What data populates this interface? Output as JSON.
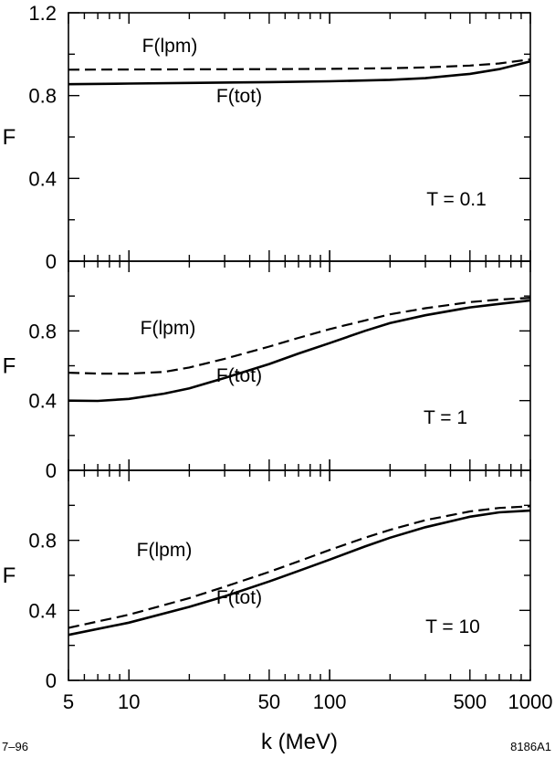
{
  "chart_data": [
    {
      "type": "line",
      "panel_label": "T = 0.1",
      "ylabel": "F",
      "ylim": [
        0,
        1.2
      ],
      "yticks": [
        0,
        0.4,
        0.8,
        1.2
      ],
      "xscale": "log",
      "xlim": [
        5,
        1000
      ],
      "series": [
        {
          "name": "F(lpm)",
          "style": "dashed",
          "x": [
            5,
            10,
            20,
            50,
            100,
            200,
            300,
            500,
            700,
            1000
          ],
          "y": [
            0.925,
            0.926,
            0.927,
            0.928,
            0.929,
            0.932,
            0.936,
            0.945,
            0.955,
            0.975
          ]
        },
        {
          "name": "F(tot)",
          "style": "solid",
          "x": [
            5,
            10,
            20,
            50,
            100,
            200,
            300,
            500,
            700,
            1000
          ],
          "y": [
            0.855,
            0.858,
            0.861,
            0.865,
            0.869,
            0.876,
            0.884,
            0.905,
            0.928,
            0.965
          ]
        }
      ]
    },
    {
      "type": "line",
      "panel_label": "T = 1",
      "ylabel": "F",
      "ylim": [
        0,
        1.2
      ],
      "yticks": [
        0,
        0.4,
        0.8
      ],
      "xscale": "log",
      "xlim": [
        5,
        1000
      ],
      "series": [
        {
          "name": "F(lpm)",
          "style": "dashed",
          "x": [
            5,
            7,
            10,
            15,
            20,
            30,
            50,
            70,
            100,
            150,
            200,
            300,
            500,
            700,
            1000
          ],
          "y": [
            0.56,
            0.555,
            0.555,
            0.565,
            0.59,
            0.64,
            0.71,
            0.76,
            0.81,
            0.86,
            0.895,
            0.93,
            0.965,
            0.98,
            0.99
          ]
        },
        {
          "name": "F(tot)",
          "style": "solid",
          "x": [
            5,
            7,
            10,
            15,
            20,
            30,
            50,
            70,
            100,
            150,
            200,
            300,
            500,
            700,
            1000
          ],
          "y": [
            0.4,
            0.398,
            0.41,
            0.44,
            0.47,
            0.53,
            0.61,
            0.67,
            0.73,
            0.8,
            0.845,
            0.89,
            0.935,
            0.955,
            0.975
          ]
        }
      ]
    },
    {
      "type": "line",
      "panel_label": "T = 10",
      "ylabel": "F",
      "ylim": [
        0,
        1.2
      ],
      "yticks": [
        0,
        0.4,
        0.8
      ],
      "xscale": "log",
      "xlim": [
        5,
        1000
      ],
      "xticks": [
        5,
        10,
        50,
        100,
        500,
        1000
      ],
      "xlabel": "k   (MeV)",
      "series": [
        {
          "name": "F(lpm)",
          "style": "dashed",
          "x": [
            5,
            10,
            20,
            30,
            50,
            70,
            100,
            150,
            200,
            300,
            500,
            700,
            1000
          ],
          "y": [
            0.3,
            0.375,
            0.47,
            0.535,
            0.62,
            0.68,
            0.745,
            0.815,
            0.86,
            0.915,
            0.965,
            0.985,
            0.995
          ]
        },
        {
          "name": "F(tot)",
          "style": "solid",
          "x": [
            5,
            10,
            20,
            30,
            50,
            70,
            100,
            150,
            200,
            300,
            500,
            700,
            1000
          ],
          "y": [
            0.26,
            0.33,
            0.42,
            0.48,
            0.565,
            0.625,
            0.69,
            0.765,
            0.815,
            0.875,
            0.935,
            0.96,
            0.97
          ]
        }
      ]
    }
  ],
  "corner_labels": {
    "left": "7–96",
    "right": "8186A1"
  }
}
